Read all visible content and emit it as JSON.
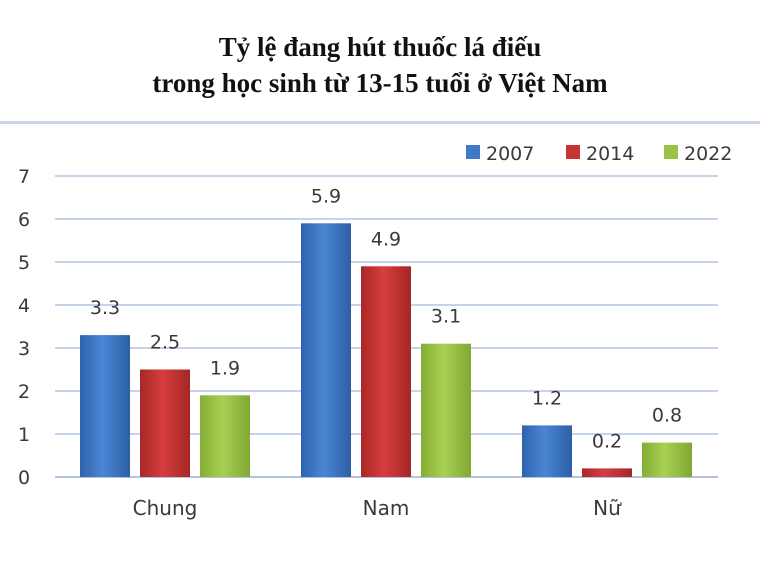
{
  "chart_data": {
    "type": "bar",
    "title_line1": "Tỷ lệ đang hút thuốc lá điếu",
    "title_line2": "trong học sinh từ 13-15 tuổi ở Việt Nam",
    "categories": [
      "Chung",
      "Nam",
      "Nữ"
    ],
    "series": [
      {
        "name": "2007",
        "values": [
          3.3,
          5.9,
          1.2
        ],
        "color": "#3f78c8"
      },
      {
        "name": "2014",
        "values": [
          2.5,
          4.9,
          0.2
        ],
        "color": "#c83434"
      },
      {
        "name": "2022",
        "values": [
          1.9,
          3.1,
          0.8
        ],
        "color": "#9bc346"
      }
    ],
    "ylim": [
      0,
      7
    ],
    "yticks": [
      "0",
      "1",
      "2",
      "3",
      "4",
      "5",
      "6",
      "7"
    ],
    "grid": true,
    "legend_position": "top-right",
    "data_labels": true
  }
}
